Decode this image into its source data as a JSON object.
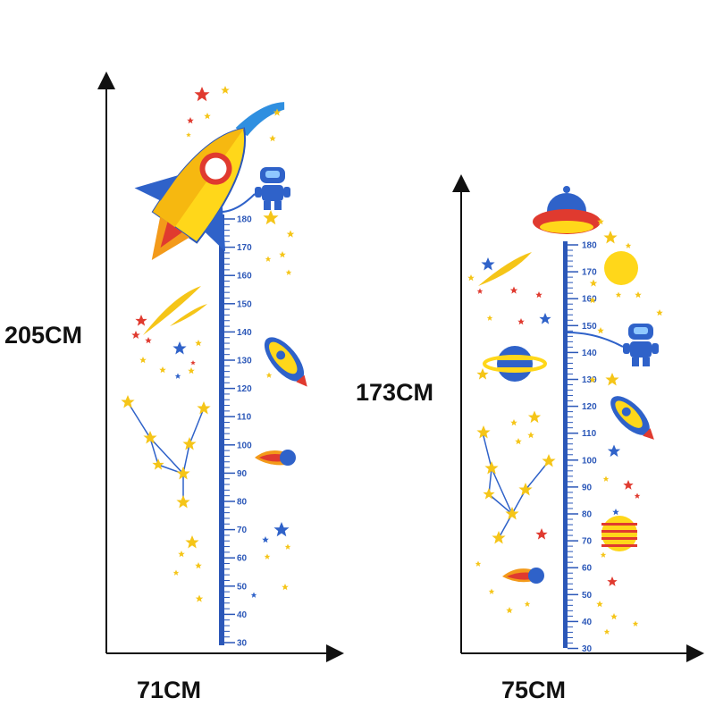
{
  "dimensions": {
    "left_height": "205CM",
    "left_width": "71CM",
    "right_height": "173CM",
    "right_width": "75CM"
  },
  "left_ruler": {
    "labels": [
      "180",
      "170",
      "160",
      "150",
      "140",
      "130",
      "120",
      "110",
      "100",
      "90",
      "80",
      "70",
      "60",
      "50",
      "40",
      "30"
    ]
  },
  "right_ruler": {
    "labels": [
      "180",
      "170",
      "160",
      "150",
      "140",
      "130",
      "120",
      "110",
      "100",
      "90",
      "80",
      "70",
      "60",
      "50",
      "40",
      "30"
    ]
  },
  "colors": {
    "ruler_blue": "#2b57b8",
    "star_yellow": "#f5c518",
    "star_red": "#e03a2f",
    "star_blue": "#2f62c9",
    "rocket_yellow": "#ffd71a",
    "axis": "#111111"
  },
  "icons": [
    "rocket-icon",
    "robot-astronaut-icon",
    "small-rocket-icon",
    "comet-icon",
    "ufo-icon",
    "planet-icon",
    "moon-icon",
    "constellation-icon",
    "star-icon"
  ]
}
